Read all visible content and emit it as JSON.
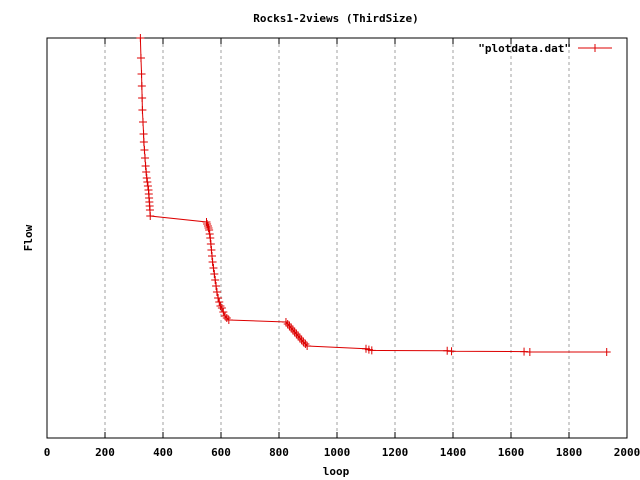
{
  "chart_data": {
    "type": "line",
    "title": "Rocks1-2views (ThirdSize)",
    "xlabel": "loop",
    "ylabel": "Flow",
    "xlim": [
      0,
      2000
    ],
    "x_ticks": [
      "0",
      "200",
      "400",
      "600",
      "800",
      "1000",
      "1200",
      "1400",
      "1600",
      "1800",
      "2000"
    ],
    "grid": "vertical dashed",
    "legend_position": "top-right",
    "series": [
      {
        "name": "\"plotdata.dat\"",
        "color": "#dd0000",
        "marker": "plus",
        "points": [
          [
            322,
            0.0
          ],
          [
            324,
            0.05
          ],
          [
            326,
            0.09
          ],
          [
            327,
            0.12
          ],
          [
            328,
            0.15
          ],
          [
            329,
            0.18
          ],
          [
            331,
            0.21
          ],
          [
            333,
            0.24
          ],
          [
            334,
            0.26
          ],
          [
            336,
            0.28
          ],
          [
            338,
            0.3
          ],
          [
            340,
            0.32
          ],
          [
            342,
            0.335
          ],
          [
            344,
            0.35
          ],
          [
            346,
            0.36
          ],
          [
            348,
            0.37
          ],
          [
            350,
            0.38
          ],
          [
            351,
            0.39
          ],
          [
            352,
            0.4
          ],
          [
            353,
            0.41
          ],
          [
            354,
            0.42
          ],
          [
            355,
            0.43
          ],
          [
            356,
            0.445
          ],
          [
            550,
            0.46
          ],
          [
            552,
            0.465
          ],
          [
            555,
            0.47
          ],
          [
            557,
            0.475
          ],
          [
            559,
            0.48
          ],
          [
            561,
            0.49
          ],
          [
            563,
            0.5
          ],
          [
            565,
            0.515
          ],
          [
            567,
            0.53
          ],
          [
            569,
            0.545
          ],
          [
            571,
            0.56
          ],
          [
            574,
            0.575
          ],
          [
            577,
            0.59
          ],
          [
            580,
            0.605
          ],
          [
            583,
            0.62
          ],
          [
            586,
            0.635
          ],
          [
            590,
            0.65
          ],
          [
            594,
            0.66
          ],
          [
            598,
            0.67
          ],
          [
            603,
            0.675
          ],
          [
            608,
            0.685
          ],
          [
            614,
            0.695
          ],
          [
            620,
            0.7
          ],
          [
            627,
            0.705
          ],
          [
            824,
            0.71
          ],
          [
            830,
            0.715
          ],
          [
            836,
            0.72
          ],
          [
            842,
            0.725
          ],
          [
            848,
            0.73
          ],
          [
            854,
            0.735
          ],
          [
            860,
            0.74
          ],
          [
            866,
            0.745
          ],
          [
            872,
            0.75
          ],
          [
            878,
            0.755
          ],
          [
            884,
            0.76
          ],
          [
            891,
            0.765
          ],
          [
            897,
            0.77
          ],
          [
            1100,
            0.777
          ],
          [
            1110,
            0.779
          ],
          [
            1120,
            0.781
          ],
          [
            1380,
            0.782
          ],
          [
            1395,
            0.783
          ],
          [
            1645,
            0.784
          ],
          [
            1665,
            0.785
          ],
          [
            1930,
            0.785
          ]
        ]
      }
    ]
  }
}
